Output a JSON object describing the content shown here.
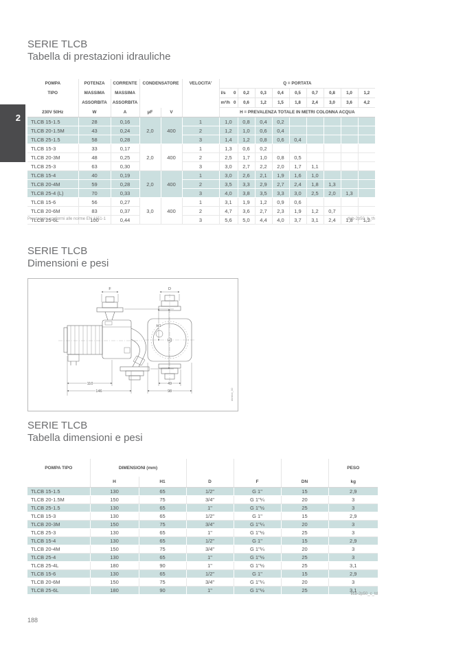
{
  "page": {
    "number": "188",
    "side_tab": "2"
  },
  "sections": {
    "performance": {
      "title": "SERIE TLCB",
      "subtitle": "Tabella di prestazioni idrauliche"
    },
    "dimensions": {
      "title": "SERIE TLCB",
      "subtitle": "Dimensioni e pesi"
    },
    "dim_table_sec": {
      "title": "SERIE TLCB",
      "subtitle": "Tabella dimensioni e pesi"
    }
  },
  "perf_table": {
    "header": {
      "pompa_l1": "POMPA",
      "pompa_l2": "TIPO",
      "pompa_l4": "230V 50Hz",
      "potenza_l1": "POTENZA",
      "potenza_l2": "MASSIMA",
      "potenza_l3": "ASSORBITA",
      "potenza_unit": "W",
      "corrente_l1": "CORRENTE",
      "corrente_l2": "MASSIMA",
      "corrente_l3": "ASSORBITA",
      "corrente_unit": "A",
      "condensatore": "CONDENSATORE",
      "uf": "μF",
      "v": "V",
      "velocita": "VELOCITA'",
      "portata": "Q = PORTATA",
      "ls_unit": "l/s",
      "ls_zero": "0",
      "ls_values": [
        "0,2",
        "0,3",
        "0,4",
        "0,5",
        "0,7",
        "0,8",
        "1,0",
        "1,2"
      ],
      "m3h_unit": "m³/h",
      "m3h_zero": "0",
      "m3h_values": [
        "0,6",
        "1,2",
        "1,5",
        "1,8",
        "2,4",
        "3,0",
        "3,6",
        "4,2"
      ],
      "h_note": "H = PREVALENZA TOTALE IN METRI COLONNA ACQUA"
    },
    "groups": [
      {
        "teal": true,
        "uf": "2,0",
        "v": "400",
        "rows": [
          {
            "name": "TLCB 15-1.5",
            "w": "28",
            "a": "0,16",
            "speed": "1",
            "h": [
              "1,0",
              "0,8",
              "0,4",
              "0,2",
              "",
              "",
              "",
              "",
              ""
            ]
          },
          {
            "name": "TLCB 20-1.5M",
            "w": "43",
            "a": "0,24",
            "speed": "2",
            "h": [
              "1,2",
              "1,0",
              "0,6",
              "0,4",
              "",
              "",
              "",
              "",
              ""
            ]
          },
          {
            "name": "TLCB 25-1.5",
            "w": "58",
            "a": "0,28",
            "speed": "3",
            "h": [
              "1,4",
              "1,2",
              "0,8",
              "0,6",
              "0,4",
              "",
              "",
              "",
              ""
            ]
          }
        ]
      },
      {
        "teal": false,
        "uf": "2,0",
        "v": "400",
        "rows": [
          {
            "name": "TLCB 15-3",
            "w": "33",
            "a": "0,17",
            "speed": "1",
            "h": [
              "1,3",
              "0,6",
              "0,2",
              "",
              "",
              "",
              "",
              "",
              ""
            ]
          },
          {
            "name": "TLCB 20-3M",
            "w": "48",
            "a": "0,25",
            "speed": "2",
            "h": [
              "2,5",
              "1,7",
              "1,0",
              "0,8",
              "0,5",
              "",
              "",
              "",
              ""
            ]
          },
          {
            "name": "TLCB 25-3",
            "w": "63",
            "a": "0,30",
            "speed": "3",
            "h": [
              "3,0",
              "2,7",
              "2,2",
              "2,0",
              "1,7",
              "1,1",
              "",
              "",
              ""
            ]
          }
        ]
      },
      {
        "teal": true,
        "uf": "2,0",
        "v": "400",
        "rows": [
          {
            "name": "TLCB 15-4",
            "w": "40",
            "a": "0,19",
            "speed": "1",
            "h": [
              "3,0",
              "2,6",
              "2,1",
              "1,9",
              "1,6",
              "1,0",
              "",
              "",
              ""
            ]
          },
          {
            "name": "TLCB 20-4M",
            "w": "59",
            "a": "0,28",
            "speed": "2",
            "h": [
              "3,5",
              "3,3",
              "2,9",
              "2,7",
              "2,4",
              "1,8",
              "1,3",
              "",
              ""
            ]
          },
          {
            "name": "TLCB 25-4 (L)",
            "w": "70",
            "a": "0,33",
            "speed": "3",
            "h": [
              "4,0",
              "3,8",
              "3,5",
              "3,3",
              "3,0",
              "2,5",
              "2,0",
              "1,3",
              ""
            ]
          }
        ]
      },
      {
        "teal": false,
        "uf": "3,0",
        "v": "400",
        "rows": [
          {
            "name": "TLCB 15-6",
            "w": "56",
            "a": "0,27",
            "speed": "1",
            "h": [
              "3,1",
              "1,9",
              "1,2",
              "0,9",
              "0,6",
              "",
              "",
              "",
              ""
            ]
          },
          {
            "name": "TLCB 20-6M",
            "w": "83",
            "a": "0,37",
            "speed": "2",
            "h": [
              "4,7",
              "3,6",
              "2,7",
              "2,3",
              "1,9",
              "1,2",
              "0,7",
              "",
              ""
            ]
          },
          {
            "name": "TLCB 25-6L",
            "w": "100",
            "a": "0,44",
            "speed": "3",
            "h": [
              "5,6",
              "5,0",
              "4,4",
              "4,0",
              "3,7",
              "3,1",
              "2,4",
              "1,8",
              "1,2"
            ]
          }
        ]
      }
    ],
    "footnote_left": "Prestazioni conformi alle norme EN 1151-1",
    "footnote_right": "tlcb-2p50_b_th"
  },
  "drawing": {
    "labels": {
      "f": "F",
      "d": "D",
      "h1": "H1",
      "h": "H",
      "len_110": "110",
      "len_146": "146",
      "len_49": "49",
      "len_98": "98"
    },
    "code": "dimtlcb_00"
  },
  "dim_table": {
    "header": {
      "pompa": "POMPA TIPO",
      "dimensioni": "DIMENSIONI (mm)",
      "peso": "PESO",
      "h": "H",
      "h1": "H1",
      "d": "D",
      "f": "F",
      "dn": "DN",
      "kg": "kg"
    },
    "rows": [
      [
        "TLCB 15-1.5",
        "130",
        "65",
        "1/2\"",
        "G 1\"",
        "15",
        "2,9"
      ],
      [
        "TLCB 20-1.5M",
        "150",
        "75",
        "3/4\"",
        "G 1\"¼",
        "20",
        "3"
      ],
      [
        "TLCB 25-1.5",
        "130",
        "65",
        "1\"",
        "G 1\"½",
        "25",
        "3"
      ],
      [
        "TLCB 15-3",
        "130",
        "65",
        "1/2\"",
        "G 1\"",
        "15",
        "2,9"
      ],
      [
        "TLCB 20-3M",
        "150",
        "75",
        "3/4\"",
        "G 1\"¼",
        "20",
        "3"
      ],
      [
        "TLCB 25-3",
        "130",
        "65",
        "1\"",
        "G 1\"½",
        "25",
        "3"
      ],
      [
        "TLCB 15-4",
        "130",
        "65",
        "1/2\"",
        "G 1\"",
        "15",
        "2,9"
      ],
      [
        "TLCB 20-4M",
        "150",
        "75",
        "3/4\"",
        "G 1\"¼",
        "20",
        "3"
      ],
      [
        "TLCB 25-4",
        "130",
        "65",
        "1\"",
        "G 1\"½",
        "25",
        "3"
      ],
      [
        "TLCB 25-4L",
        "180",
        "90",
        "1\"",
        "G 1\"½",
        "25",
        "3,1"
      ],
      [
        "TLCB 15-6",
        "130",
        "65",
        "1/2\"",
        "G 1\"",
        "15",
        "2,9"
      ],
      [
        "TLCB 20-6M",
        "150",
        "75",
        "3/4\"",
        "G 1\"¼",
        "20",
        "3"
      ],
      [
        "TLCB 25-6L",
        "180",
        "90",
        "1\"",
        "G 1\"½",
        "25",
        "3,1"
      ]
    ],
    "footnote_right": "tlcb-2p50_c_td"
  }
}
